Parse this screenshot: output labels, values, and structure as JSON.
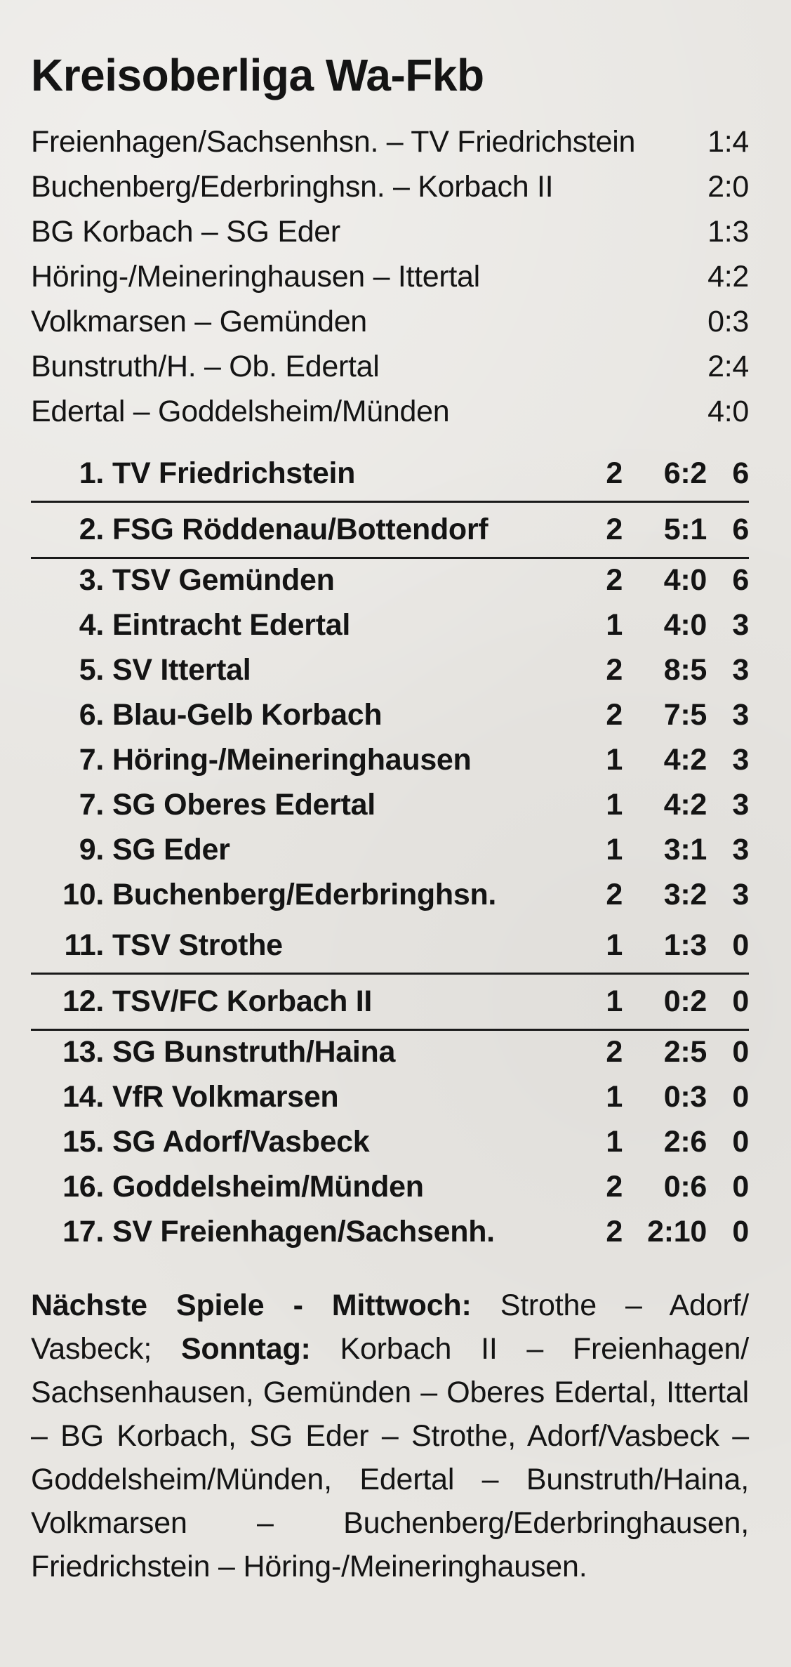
{
  "title": "Kreisoberliga Wa-Fkb",
  "results": [
    {
      "match": "Freienhagen/Sachsenhsn. – TV Friedrichstein",
      "score": "1:4"
    },
    {
      "match": "Buchenberg/Ederbringhsn. – Korbach II",
      "score": "2:0"
    },
    {
      "match": "BG Korbach – SG Eder",
      "score": "1:3"
    },
    {
      "match": "Höring-/Meineringhausen – Ittertal",
      "score": "4:2"
    },
    {
      "match": "Volkmarsen – Gemünden",
      "score": "0:3"
    },
    {
      "match": "Bunstruth/H. – Ob. Edertal",
      "score": "2:4"
    },
    {
      "match": "Edertal – Goddelsheim/Münden",
      "score": "4:0"
    }
  ],
  "standings": [
    {
      "rank": "1.",
      "team": "TV Friedrichstein",
      "games": "2",
      "goals": "6:2",
      "points": "6"
    },
    {
      "rank": "2.",
      "team": "FSG Röddenau/Bottendorf",
      "games": "2",
      "goals": "5:1",
      "points": "6"
    },
    {
      "rank": "3.",
      "team": "TSV Gemünden",
      "games": "2",
      "goals": "4:0",
      "points": "6"
    },
    {
      "rank": "4.",
      "team": "Eintracht Edertal",
      "games": "1",
      "goals": "4:0",
      "points": "3"
    },
    {
      "rank": "5.",
      "team": "SV Ittertal",
      "games": "2",
      "goals": "8:5",
      "points": "3"
    },
    {
      "rank": "6.",
      "team": "Blau-Gelb Korbach",
      "games": "2",
      "goals": "7:5",
      "points": "3"
    },
    {
      "rank": "7.",
      "team": "Höring-/Meineringhausen",
      "games": "1",
      "goals": "4:2",
      "points": "3"
    },
    {
      "rank": "7.",
      "team": "SG Oberes Edertal",
      "games": "1",
      "goals": "4:2",
      "points": "3"
    },
    {
      "rank": "9.",
      "team": "SG Eder",
      "games": "1",
      "goals": "3:1",
      "points": "3"
    },
    {
      "rank": "10.",
      "team": "Buchenberg/Ederbringhsn.",
      "games": "2",
      "goals": "3:2",
      "points": "3"
    },
    {
      "rank": "11.",
      "team": "TSV Strothe",
      "games": "1",
      "goals": "1:3",
      "points": "0"
    },
    {
      "rank": "12.",
      "team": "TSV/FC Korbach II",
      "games": "1",
      "goals": "0:2",
      "points": "0"
    },
    {
      "rank": "13.",
      "team": "SG Bunstruth/Haina",
      "games": "2",
      "goals": "2:5",
      "points": "0"
    },
    {
      "rank": "14.",
      "team": "VfR Volkmarsen",
      "games": "1",
      "goals": "0:3",
      "points": "0"
    },
    {
      "rank": "15.",
      "team": "SG Adorf/Vasbeck",
      "games": "1",
      "goals": "2:6",
      "points": "0"
    },
    {
      "rank": "16.",
      "team": "Goddelsheim/Münden",
      "games": "2",
      "goals": "0:6",
      "points": "0"
    },
    {
      "rank": "17.",
      "team": "SV Freienhagen/Sachsenh.",
      "games": "2",
      "goals": "2:10",
      "points": "0"
    }
  ],
  "next": {
    "label1": "Nächste Spiele - Mittwoch:",
    "text1": " Strothe – Adorf/ Vasbeck; ",
    "label2": "Sonntag:",
    "text2": " Korbach II – Freienhagen/ Sachsenhausen, Gemünden – Oberes Edertal, Ittertal – BG Korbach, SG Eder – Strothe, Adorf/Vasbeck – Goddelsheim/Münden, Edertal – Bunstruth/Haina, Volkmarsen – Buchenberg/Ederbringhausen, Friedrichstein – Höring-/Meineringhausen."
  }
}
